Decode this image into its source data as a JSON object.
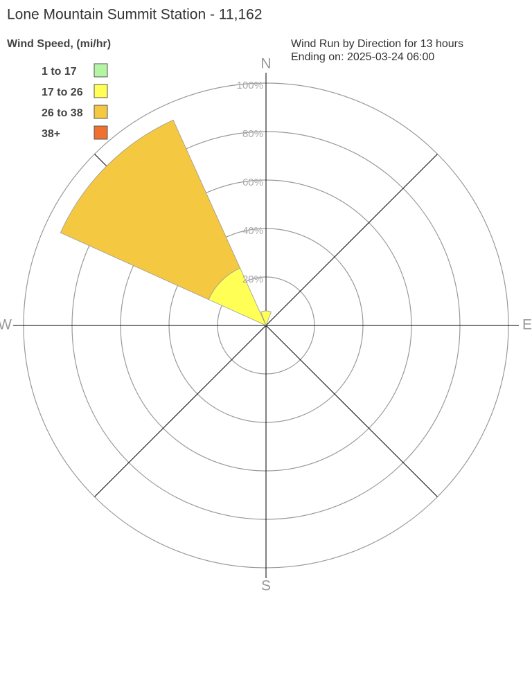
{
  "chart_data": {
    "type": "windrose",
    "title": "Lone Mountain Summit Station - 11,162",
    "legend_title": "Wind Speed, (mi/hr)",
    "subtitle": [
      "Wind Run by Direction for 13 hours",
      "Ending on: 2025-03-24 06:00"
    ],
    "categories": [
      "N",
      null,
      "E",
      null,
      "S",
      null,
      "W",
      null
    ],
    "series": [
      {
        "name": "1 to 17",
        "color": "#b3f5a3",
        "values": [
          0,
          0,
          0,
          0,
          0,
          0,
          0,
          0
        ]
      },
      {
        "name": "17 to 26",
        "color": "#ffff55",
        "values": [
          6,
          0,
          0,
          0,
          0,
          0,
          0,
          26
        ]
      },
      {
        "name": "26 to 38",
        "color": "#f5c842",
        "values": [
          0,
          0,
          0,
          0,
          0,
          0,
          0,
          67
        ]
      },
      {
        "name": "38+",
        "color": "#f07030",
        "values": [
          0,
          0,
          0,
          0,
          0,
          0,
          0,
          0
        ]
      }
    ],
    "ylim": [
      0,
      100
    ],
    "yticks": [
      {
        "value": 20,
        "label": "20%"
      },
      {
        "value": 40,
        "label": "40%"
      },
      {
        "value": 60,
        "label": "60%"
      },
      {
        "value": 80,
        "label": "80%"
      },
      {
        "value": 100,
        "label": "100%"
      }
    ],
    "grid": true
  }
}
